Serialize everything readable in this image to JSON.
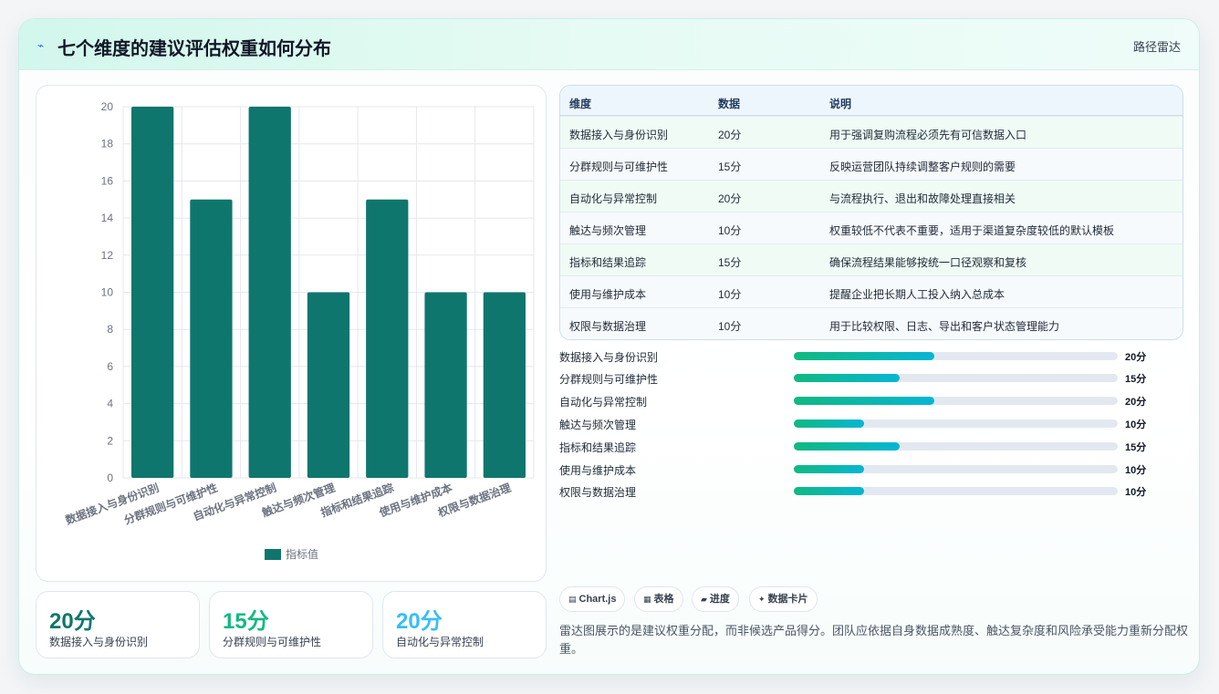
{
  "header": {
    "title": "七个维度的建议评估权重如何分布",
    "tag": "路径雷达",
    "icon": "bolt-icon"
  },
  "chart_data": {
    "type": "bar",
    "categories": [
      "数据接入与身份识别",
      "分群规则与可维护性",
      "自动化与异常控制",
      "触达与频次管理",
      "指标和结果追踪",
      "使用与维护成本",
      "权限与数据治理"
    ],
    "series": [
      {
        "name": "指标值",
        "values": [
          20,
          15,
          20,
          10,
          15,
          10,
          10
        ]
      }
    ],
    "ylim": [
      0,
      20
    ],
    "yticks": [
      0,
      2,
      4,
      6,
      8,
      10,
      12,
      14,
      16,
      18,
      20
    ],
    "grid": true,
    "legend": "bottom",
    "bar_color": "#0f766e"
  },
  "stats": [
    {
      "value": "20分",
      "label": "数据接入与身份识别",
      "color": "#0f766e"
    },
    {
      "value": "15分",
      "label": "分群规则与可维护性",
      "color": "#10b981"
    },
    {
      "value": "20分",
      "label": "自动化与异常控制",
      "color": "#38bdf8"
    }
  ],
  "table": {
    "headers": [
      "维度",
      "数据",
      "说明"
    ],
    "rows": [
      {
        "dim": "数据接入与身份识别",
        "score": "20分",
        "desc": "用于强调复购流程必须先有可信数据入口"
      },
      {
        "dim": "分群规则与可维护性",
        "score": "15分",
        "desc": "反映运营团队持续调整客户规则的需要"
      },
      {
        "dim": "自动化与异常控制",
        "score": "20分",
        "desc": "与流程执行、退出和故障处理直接相关"
      },
      {
        "dim": "触达与频次管理",
        "score": "10分",
        "desc": "权重较低不代表不重要，适用于渠道复杂度较低的默认模板"
      },
      {
        "dim": "指标和结果追踪",
        "score": "15分",
        "desc": "确保流程结果能够按统一口径观察和复核"
      },
      {
        "dim": "使用与维护成本",
        "score": "10分",
        "desc": "提醒企业把长期人工投入纳入总成本"
      },
      {
        "dim": "权限与数据治理",
        "score": "10分",
        "desc": "用于比较权限、日志、导出和客户状态管理能力"
      }
    ]
  },
  "progress": [
    {
      "label": "数据接入与身份识别",
      "value": "20分",
      "fraction": 0.4349
    },
    {
      "label": "分群规则与可维护性",
      "value": "15分",
      "fraction": 0.3267
    },
    {
      "label": "自动化与异常控制",
      "value": "20分",
      "fraction": 0.4349
    },
    {
      "label": "触达与频次管理",
      "value": "10分",
      "fraction": 0.2183
    },
    {
      "label": "指标和结果追踪",
      "value": "15分",
      "fraction": 0.3267
    },
    {
      "label": "使用与维护成本",
      "value": "10分",
      "fraction": 0.2183
    },
    {
      "label": "权限与数据治理",
      "value": "10分",
      "fraction": 0.2183
    }
  ],
  "chips": [
    {
      "icon": "chart-icon",
      "label": "Chart.js"
    },
    {
      "icon": "table-icon",
      "label": "表格"
    },
    {
      "icon": "folder-icon",
      "label": "进度"
    },
    {
      "icon": "sparkle-icon",
      "label": "数据卡片"
    }
  ],
  "note": "雷达图展示的是建议权重分配，而非候选产品得分。团队应依据自身数据成熟度、触达复杂度和风险承受能力重新分配权重。"
}
